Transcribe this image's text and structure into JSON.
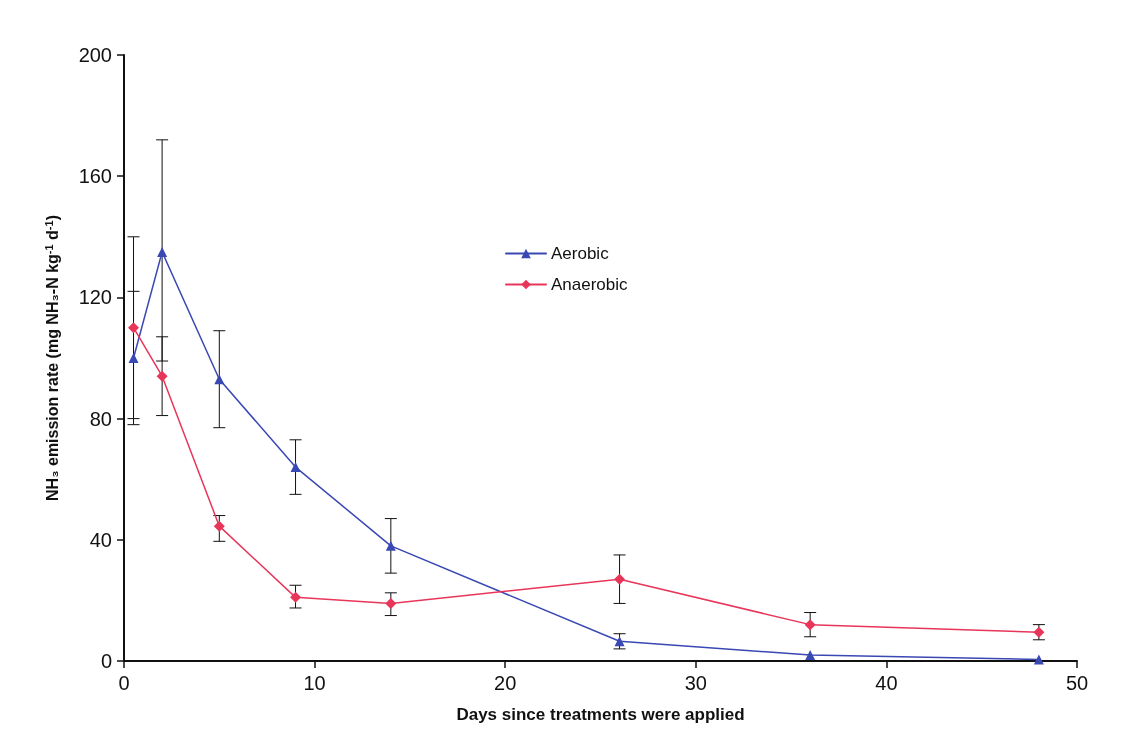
{
  "chart_data": {
    "type": "line",
    "xlabel": "Days since treatments were applied",
    "ylabel": "NH₃ emission rate (mg NH₃-N kg$^{-1}$ d$^{-1}$)",
    "x": [
      0.5,
      2,
      5,
      9,
      14,
      26,
      36,
      48
    ],
    "series": [
      {
        "name": "Aerobic",
        "color": "#3a48b4",
        "marker": "triangle",
        "values": [
          100,
          135,
          93,
          64,
          38,
          6.5,
          2,
          0.5
        ],
        "errors": [
          [
            78,
            122
          ],
          [
            99,
            172
          ],
          [
            77,
            109
          ],
          [
            55,
            73
          ],
          [
            29,
            47
          ],
          [
            4,
            9
          ],
          null,
          null
        ]
      },
      {
        "name": "Anaerobic",
        "color": "#e8365a",
        "marker": "diamond",
        "values": [
          110,
          94,
          44.5,
          21,
          19,
          27,
          12,
          9.5
        ],
        "errors": [
          [
            80,
            140
          ],
          [
            81,
            107
          ],
          [
            39.5,
            48
          ],
          [
            17.5,
            25
          ],
          [
            15,
            22.5
          ],
          [
            19,
            35
          ],
          [
            8,
            16
          ],
          [
            7,
            12
          ]
        ]
      }
    ],
    "xlim": [
      0,
      50
    ],
    "xticks": [
      0,
      10,
      20,
      30,
      40,
      50
    ],
    "ylim": [
      0,
      200
    ],
    "yticks": [
      0,
      40,
      80,
      120,
      160,
      200
    ],
    "grid": false,
    "legend": "top",
    "line_style": "solid"
  }
}
